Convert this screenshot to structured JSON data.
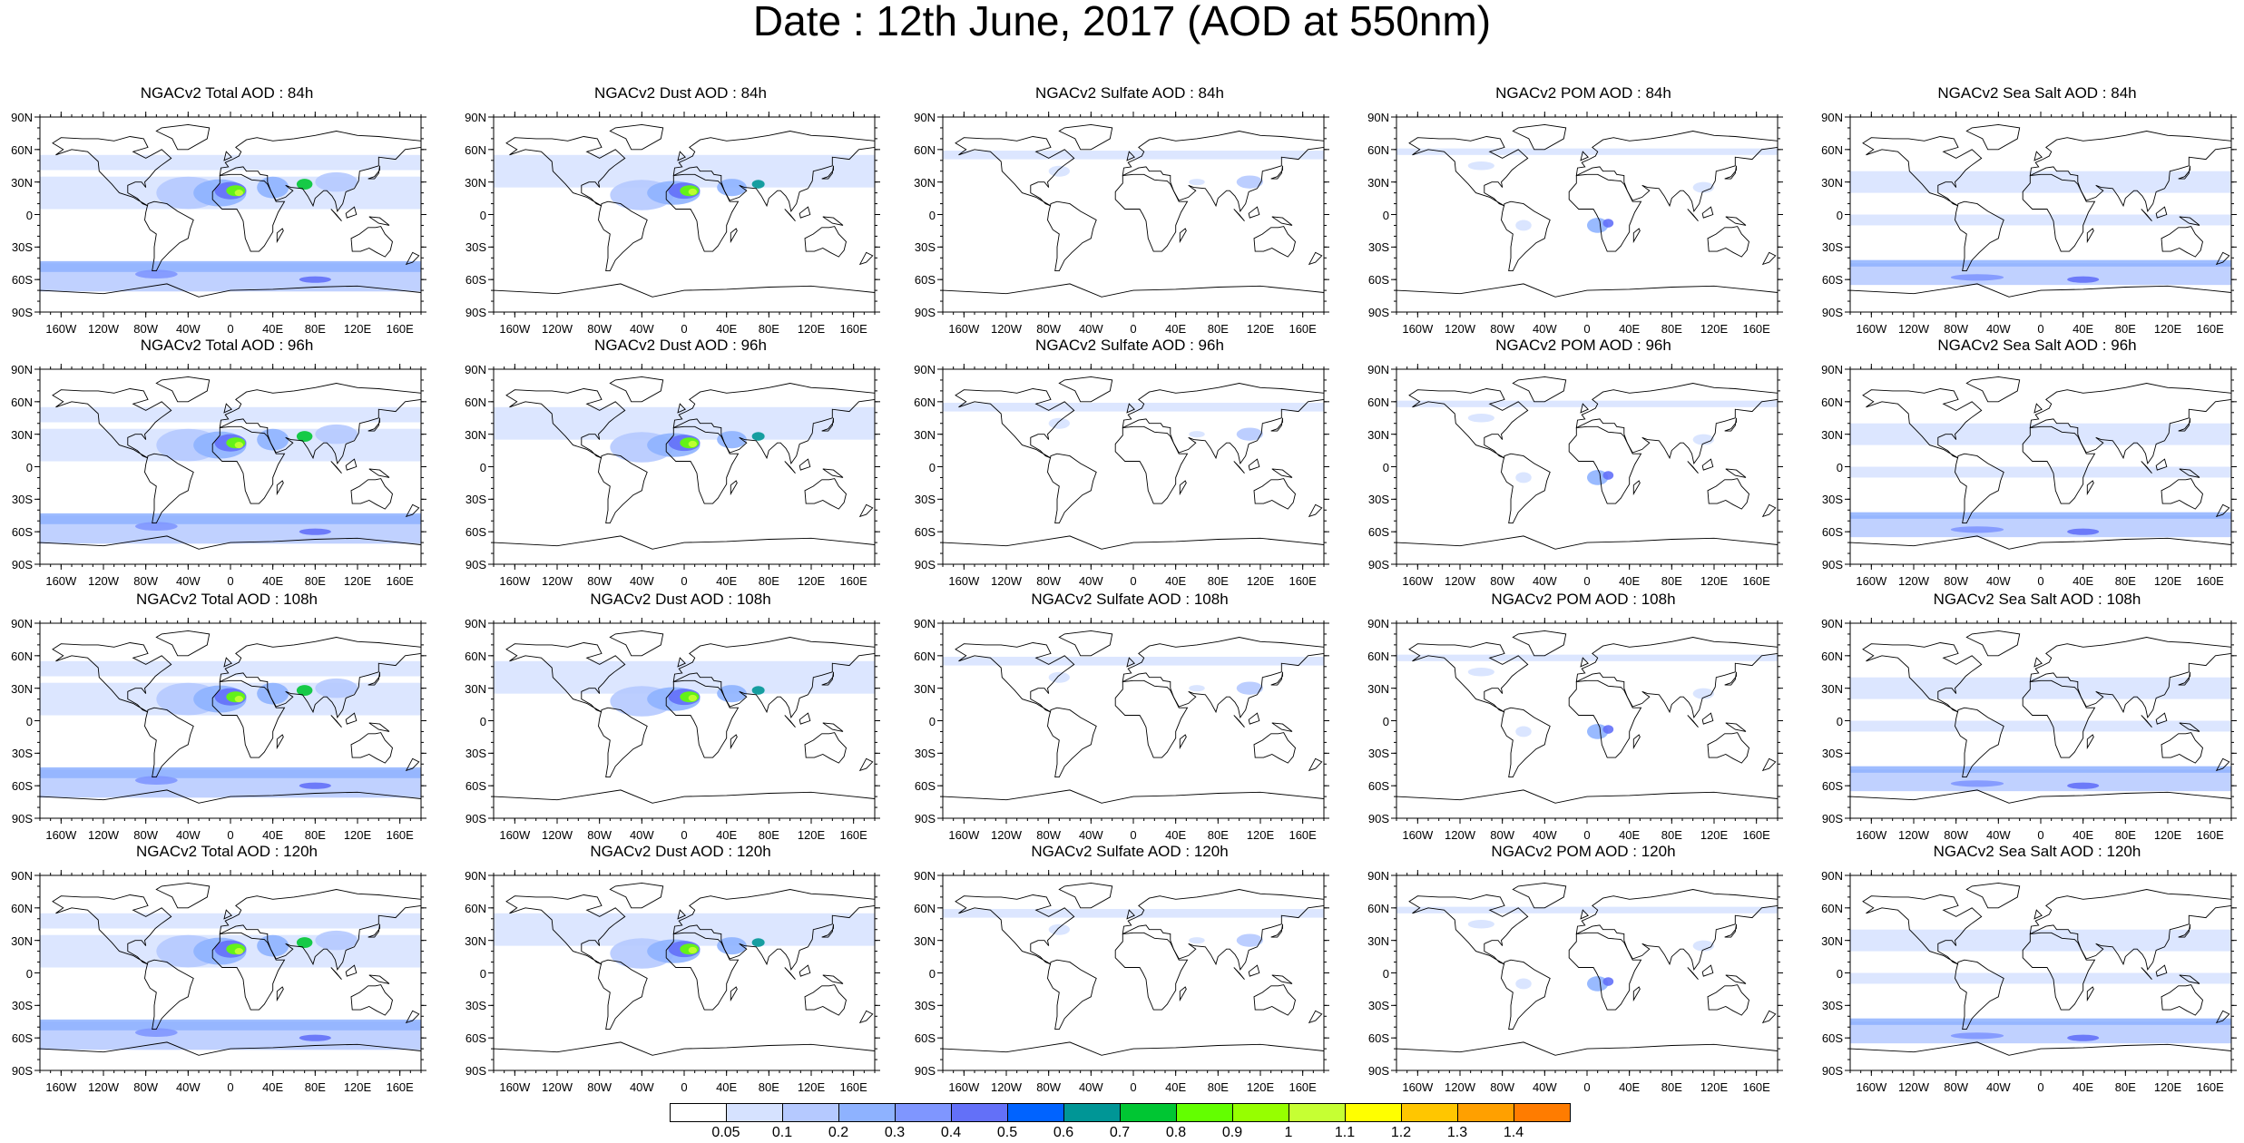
{
  "title": "Date : 12th June, 2017 (AOD at 550nm)",
  "panels": [
    [
      "NGACv2 Total AOD : 84h",
      "NGACv2 Dust AOD : 84h",
      "NGACv2 Sulfate AOD : 84h",
      "NGACv2 POM AOD : 84h",
      "NGACv2 Sea Salt AOD : 84h"
    ],
    [
      "NGACv2 Total AOD : 96h",
      "NGACv2 Dust AOD : 96h",
      "NGACv2 Sulfate AOD : 96h",
      "NGACv2 POM AOD : 96h",
      "NGACv2 Sea Salt AOD : 96h"
    ],
    [
      "NGACv2 Total AOD : 108h",
      "NGACv2 Dust AOD : 108h",
      "NGACv2 Sulfate AOD : 108h",
      "NGACv2 POM AOD : 108h",
      "NGACv2 Sea Salt AOD : 108h"
    ],
    [
      "NGACv2 Total AOD : 120h",
      "NGACv2 Dust AOD : 120h",
      "NGACv2 Sulfate AOD : 120h",
      "NGACv2 POM AOD : 120h",
      "NGACv2 Sea Salt  AOD : 120h"
    ]
  ],
  "lat_labels": [
    "90N",
    "60N",
    "30N",
    "0",
    "30S",
    "60S",
    "90S"
  ],
  "lon_labels": [
    "160W",
    "120W",
    "80W",
    "40W",
    "0",
    "40E",
    "80E",
    "120E",
    "160E"
  ],
  "colorbar": {
    "labels": [
      "0.05",
      "0.1",
      "0.2",
      "0.3",
      "0.4",
      "0.5",
      "0.6",
      "0.7",
      "0.8",
      "0.9",
      "1",
      "1.1",
      "1.2",
      "1.3",
      "1.4"
    ],
    "colors": [
      "#ffffff",
      "#d6e2ff",
      "#b5c9ff",
      "#8eb2ff",
      "#7f96ff",
      "#6370f8",
      "#0063ff",
      "#009696",
      "#00c633",
      "#63ff00",
      "#96ff00",
      "#c6ff33",
      "#ffff00",
      "#ffc600",
      "#ffa000",
      "#ff7c00",
      "#ff1900"
    ]
  },
  "map_style": {
    "ocean": "#ffffff",
    "coastline": "#000000"
  }
}
